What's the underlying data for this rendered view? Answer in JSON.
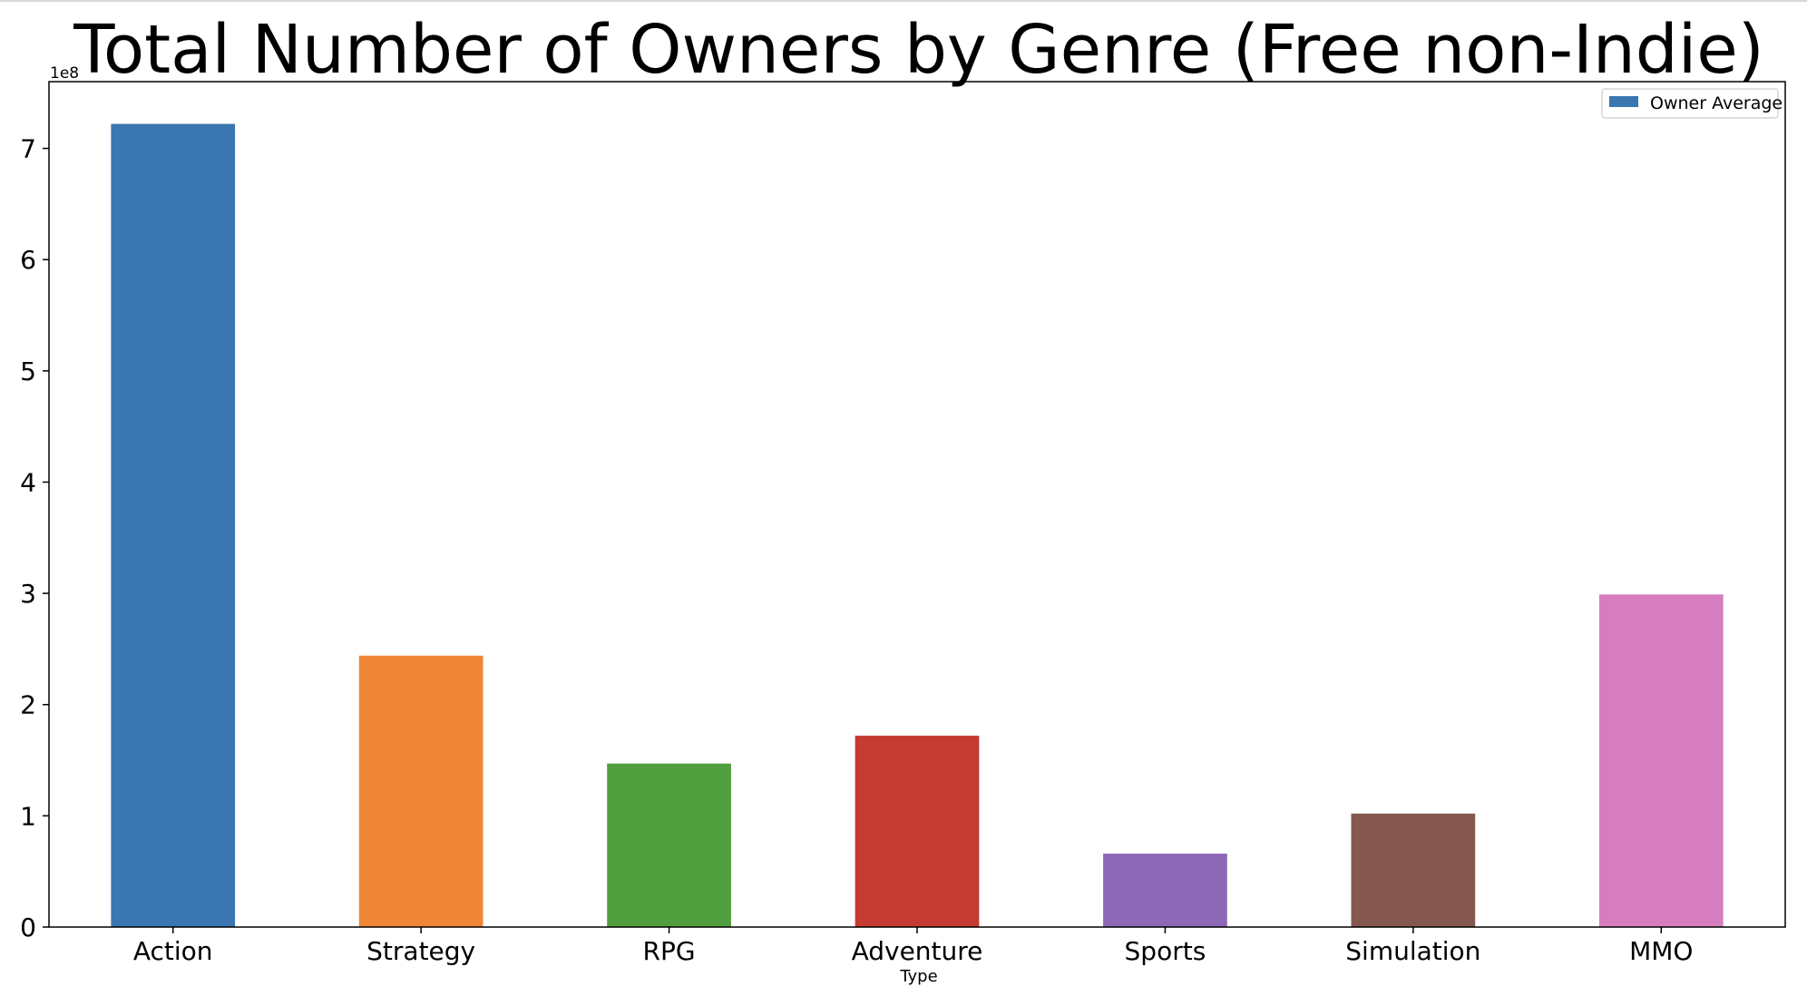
{
  "chart_data": {
    "type": "bar",
    "title": "Total Number of Owners by Genre (Free non-Indie)",
    "xlabel": "Type",
    "ylabel": "",
    "y_offset_label": "1e8",
    "categories": [
      "Action",
      "Strategy",
      "RPG",
      "Adventure",
      "Sports",
      "Simulation",
      "MMO"
    ],
    "series": [
      {
        "name": "Owner Average",
        "values": [
          722000000,
          244000000,
          147000000,
          172000000,
          66000000,
          102000000,
          299000000
        ]
      }
    ],
    "bar_colors": [
      "#3a76af",
      "#ef8636",
      "#519e3e",
      "#c53a32",
      "#8d69b8",
      "#84584e",
      "#d57dbf"
    ],
    "ylim": [
      0,
      760000000
    ],
    "yticks": [
      0,
      100000000,
      200000000,
      300000000,
      400000000,
      500000000,
      600000000,
      700000000
    ],
    "ytick_labels": [
      "0",
      "1",
      "2",
      "3",
      "4",
      "5",
      "6",
      "7"
    ],
    "grid": false,
    "legend": {
      "position": "top-right",
      "entries": [
        "Owner Average"
      ],
      "swatch_color": "#3a76af"
    }
  }
}
